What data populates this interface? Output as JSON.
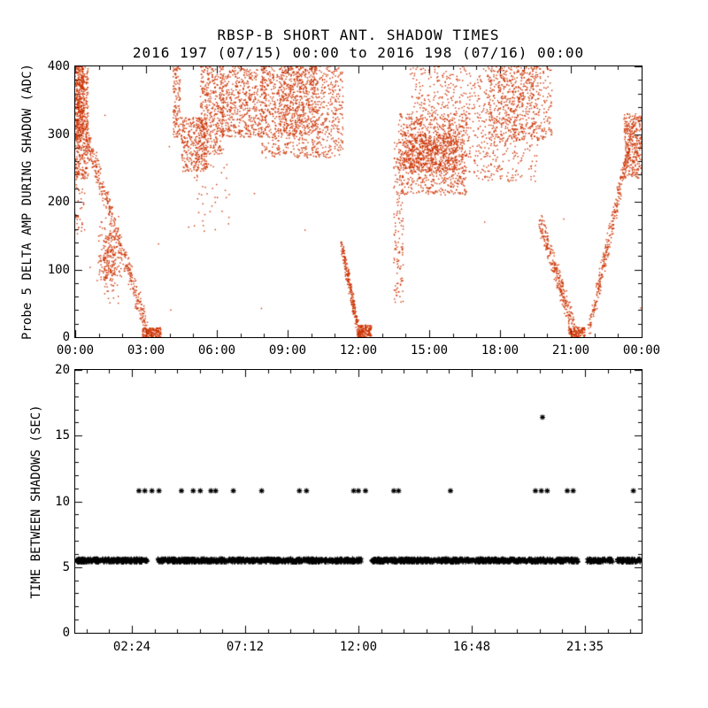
{
  "figure": {
    "title": "RBSP-B SHORT ANT. SHADOW TIMES",
    "subtitle": "2016 197 (07/15) 00:00 to 2016 198 (07/16) 00:00",
    "background": "#ffffff",
    "axis_color": "#000000"
  },
  "chart_data": [
    {
      "id": "top",
      "type": "scatter",
      "title": "RBSP-B SHORT ANT. SHADOW TIMES",
      "subtitle": "2016 197 (07/15) 00:00 to 2016 198 (07/16) 00:00",
      "ylabel": "Probe 5 DELTA AMP DURING SHADOW (ADC)",
      "xlabel": "",
      "xlim": [
        0,
        24
      ],
      "ylim": [
        0,
        400
      ],
      "grid": false,
      "marker": "dot",
      "marker_color": "#cc3300",
      "seed": 42,
      "xticks": {
        "major": [
          0,
          3,
          6,
          9,
          12,
          15,
          18,
          21,
          24
        ],
        "labels": [
          "00:00",
          "03:00",
          "06:00",
          "09:00",
          "12:00",
          "15:00",
          "18:00",
          "21:00",
          "00:00"
        ],
        "minor_step": 1
      },
      "yticks": {
        "major": [
          0,
          100,
          200,
          300,
          400
        ],
        "labels": [
          "0",
          "100",
          "200",
          "300",
          "400"
        ],
        "minor_step": 20
      },
      "clusters": [
        {
          "type": "box",
          "x": [
            0.0,
            0.55
          ],
          "y": [
            235,
            400
          ],
          "n": 500
        },
        {
          "type": "box",
          "x": [
            0.0,
            0.35
          ],
          "y": [
            290,
            400
          ],
          "n": 200
        },
        {
          "type": "box",
          "x": [
            0.0,
            0.4
          ],
          "y": [
            150,
            240
          ],
          "n": 40
        },
        {
          "type": "streak",
          "from": [
            0.45,
            300
          ],
          "to": [
            3.15,
            0
          ],
          "jx": 0.1,
          "jy": 14,
          "n": 400
        },
        {
          "type": "gauss",
          "c": [
            1.45,
            115
          ],
          "s": [
            0.22,
            28
          ],
          "n": 260
        },
        {
          "type": "box",
          "x": [
            2.85,
            3.65
          ],
          "y": [
            0,
            14
          ],
          "n": 150
        },
        {
          "type": "box",
          "x": [
            4.15,
            4.45
          ],
          "y": [
            295,
            400
          ],
          "n": 120
        },
        {
          "type": "box",
          "x": [
            4.5,
            5.6
          ],
          "y": [
            245,
            325
          ],
          "n": 350
        },
        {
          "type": "box",
          "x": [
            5.3,
            6.3
          ],
          "y": [
            270,
            400
          ],
          "n": 350
        },
        {
          "type": "box",
          "x": [
            6.1,
            8.1
          ],
          "y": [
            295,
            400
          ],
          "n": 600
        },
        {
          "type": "box",
          "x": [
            7.9,
            11.35
          ],
          "y": [
            265,
            400
          ],
          "n": 900
        },
        {
          "type": "box",
          "x": [
            8.6,
            10.3
          ],
          "y": [
            300,
            400
          ],
          "n": 400
        },
        {
          "type": "box",
          "x": [
            4.8,
            6.6
          ],
          "y": [
            150,
            260
          ],
          "n": 40
        },
        {
          "type": "streak",
          "from": [
            11.3,
            135
          ],
          "to": [
            12.05,
            0
          ],
          "jx": 0.06,
          "jy": 10,
          "n": 260
        },
        {
          "type": "box",
          "x": [
            12.0,
            12.55
          ],
          "y": [
            0,
            18
          ],
          "n": 140
        },
        {
          "type": "box",
          "x": [
            13.5,
            13.9
          ],
          "y": [
            50,
            300
          ],
          "n": 150
        },
        {
          "type": "box",
          "x": [
            13.7,
            16.6
          ],
          "y": [
            210,
            330
          ],
          "n": 700
        },
        {
          "type": "box",
          "x": [
            13.9,
            16.2
          ],
          "y": [
            245,
            300
          ],
          "n": 500
        },
        {
          "type": "box",
          "x": [
            14.2,
            19.6
          ],
          "y": [
            230,
            400
          ],
          "n": 900
        },
        {
          "type": "box",
          "x": [
            17.5,
            20.2
          ],
          "y": [
            290,
            400
          ],
          "n": 500
        },
        {
          "type": "streak",
          "from": [
            19.7,
            170
          ],
          "to": [
            21.25,
            0
          ],
          "jx": 0.08,
          "jy": 16,
          "n": 300
        },
        {
          "type": "box",
          "x": [
            20.9,
            21.6
          ],
          "y": [
            0,
            14
          ],
          "n": 120
        },
        {
          "type": "streak",
          "from": [
            21.75,
            5
          ],
          "to": [
            23.55,
            295
          ],
          "jx": 0.07,
          "jy": 14,
          "n": 320
        },
        {
          "type": "box",
          "x": [
            23.25,
            24.0
          ],
          "y": [
            235,
            330
          ],
          "n": 320
        },
        {
          "type": "box",
          "x": [
            0,
            24
          ],
          "y": [
            20,
            395
          ],
          "n": 18
        }
      ],
      "points": []
    },
    {
      "id": "bottom",
      "type": "scatter",
      "ylabel": "TIME BETWEEN SHADOWS (SEC)",
      "xlabel": "",
      "xlim": [
        0,
        24
      ],
      "ylim": [
        0,
        20
      ],
      "grid": false,
      "marker": "plus",
      "marker_color": "#000000",
      "seed": 7,
      "xticks": {
        "major": [
          2.4,
          7.2,
          12.0,
          16.8,
          21.59
        ],
        "labels": [
          "02:24",
          "07:12",
          "12:00",
          "16:48",
          "21:35"
        ],
        "minor_step": 0.96
      },
      "yticks": {
        "major": [
          0,
          5,
          10,
          15,
          20
        ],
        "labels": [
          "0",
          "5",
          "10",
          "15",
          "20"
        ],
        "minor_step": 1
      },
      "clusters": [
        {
          "type": "box",
          "x": [
            0.05,
            23.95
          ],
          "y": [
            5.35,
            5.65
          ],
          "n": 2600,
          "marker": "plus",
          "gaps": [
            [
              3.08,
              3.5
            ],
            [
              12.15,
              12.55
            ],
            [
              21.32,
              21.7
            ],
            [
              22.78,
              22.95
            ]
          ]
        }
      ],
      "points": [
        {
          "x": 2.7,
          "y": 10.8,
          "marker": "asterisk"
        },
        {
          "x": 2.95,
          "y": 10.8,
          "marker": "asterisk"
        },
        {
          "x": 3.25,
          "y": 10.8,
          "marker": "asterisk"
        },
        {
          "x": 3.55,
          "y": 10.8,
          "marker": "asterisk"
        },
        {
          "x": 4.5,
          "y": 10.8,
          "marker": "asterisk"
        },
        {
          "x": 5.0,
          "y": 10.8,
          "marker": "asterisk"
        },
        {
          "x": 5.3,
          "y": 10.8,
          "marker": "asterisk"
        },
        {
          "x": 5.75,
          "y": 10.8,
          "marker": "asterisk"
        },
        {
          "x": 5.95,
          "y": 10.8,
          "marker": "asterisk"
        },
        {
          "x": 6.7,
          "y": 10.8,
          "marker": "asterisk"
        },
        {
          "x": 7.9,
          "y": 10.8,
          "marker": "asterisk"
        },
        {
          "x": 9.5,
          "y": 10.8,
          "marker": "asterisk"
        },
        {
          "x": 9.8,
          "y": 10.8,
          "marker": "asterisk"
        },
        {
          "x": 11.8,
          "y": 10.8,
          "marker": "asterisk"
        },
        {
          "x": 12.0,
          "y": 10.8,
          "marker": "asterisk"
        },
        {
          "x": 12.3,
          "y": 10.8,
          "marker": "asterisk"
        },
        {
          "x": 13.5,
          "y": 10.8,
          "marker": "asterisk"
        },
        {
          "x": 13.7,
          "y": 10.8,
          "marker": "asterisk"
        },
        {
          "x": 15.9,
          "y": 10.8,
          "marker": "asterisk"
        },
        {
          "x": 19.5,
          "y": 10.8,
          "marker": "asterisk"
        },
        {
          "x": 19.75,
          "y": 10.8,
          "marker": "asterisk"
        },
        {
          "x": 20.0,
          "y": 10.8,
          "marker": "asterisk"
        },
        {
          "x": 20.85,
          "y": 10.8,
          "marker": "asterisk"
        },
        {
          "x": 21.1,
          "y": 10.8,
          "marker": "asterisk"
        },
        {
          "x": 23.65,
          "y": 10.8,
          "marker": "asterisk"
        },
        {
          "x": 19.8,
          "y": 16.4,
          "marker": "asterisk"
        }
      ]
    }
  ]
}
